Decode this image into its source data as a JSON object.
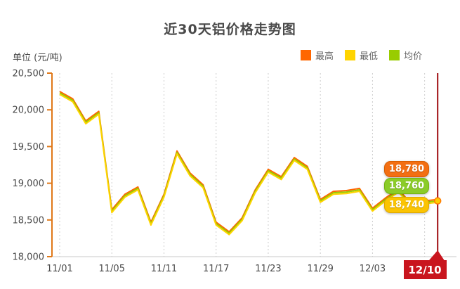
{
  "page": {
    "title": "近30天铝价格走势图",
    "unit_label": "单位 (元/吨)"
  },
  "legend": {
    "items": [
      {
        "label": "最高",
        "color": "#ff6600"
      },
      {
        "label": "最低",
        "color": "#ffd400"
      },
      {
        "label": "均价",
        "color": "#99cc00"
      }
    ]
  },
  "end_labels": {
    "high": {
      "value": "18,780",
      "color": "#f36f13",
      "border": "#d85d00"
    },
    "avg": {
      "value": "18,760",
      "color": "#8bcc29",
      "border": "#74b412"
    },
    "low": {
      "value": "18,740",
      "color": "#fbc402",
      "border": "#dfa800"
    }
  },
  "chart_data": {
    "type": "line",
    "title": "近30天铝价格走势图",
    "ylabel": "单位 (元/吨)",
    "ylim": [
      18000,
      20500
    ],
    "ytick_interval": 500,
    "yticks": [
      "20,500",
      "20,000",
      "19,500",
      "19,000",
      "18,500",
      "18,000"
    ],
    "x": [
      "11/01",
      "11/02",
      "11/03",
      "11/04",
      "11/05",
      "11/08",
      "11/09",
      "11/10",
      "11/11",
      "11/12",
      "11/15",
      "11/16",
      "11/17",
      "11/18",
      "11/19",
      "11/22",
      "11/23",
      "11/24",
      "11/25",
      "11/26",
      "11/29",
      "11/30",
      "12/01",
      "12/02",
      "12/03",
      "12/06",
      "12/07",
      "12/08",
      "12/09",
      "12/10"
    ],
    "xtick_labels": [
      "11/01",
      "11/05",
      "11/11",
      "11/17",
      "11/23",
      "11/29",
      "12/03"
    ],
    "xtick_indices": [
      0,
      4,
      8,
      12,
      16,
      20,
      24
    ],
    "gridline_indices": [
      0,
      4,
      8,
      12,
      16,
      20,
      24,
      28
    ],
    "grid": "vertical-dashed",
    "legend_position": "top-right",
    "axis_colors": {
      "y_axis": "#e07818",
      "x_axis": "#c8c8c8",
      "gridline": "#cccccc"
    },
    "current": {
      "label": "12/10",
      "index": 29,
      "line_color": "#9e0b0f",
      "box_color": "#c9151e"
    },
    "series": [
      {
        "name": "最高",
        "key": "high",
        "color": "#ff6600",
        "values": [
          20250,
          20150,
          19850,
          19980,
          18640,
          18850,
          18950,
          18470,
          18850,
          19440,
          19140,
          18980,
          18470,
          18340,
          18530,
          18910,
          19190,
          19090,
          19350,
          19230,
          18780,
          18890,
          18900,
          18930,
          18660,
          18800,
          18920,
          18710,
          18760,
          18780
        ]
      },
      {
        "name": "均价",
        "key": "avg",
        "color": "#99cc00",
        "values": [
          20230,
          20130,
          19830,
          19960,
          18620,
          18830,
          18930,
          18450,
          18830,
          19420,
          19120,
          18960,
          18450,
          18320,
          18510,
          18890,
          19170,
          19070,
          19330,
          19210,
          18760,
          18870,
          18880,
          18910,
          18640,
          18780,
          18900,
          18690,
          18740,
          18760
        ]
      },
      {
        "name": "最低",
        "key": "low",
        "color": "#ffd400",
        "values": [
          20210,
          20110,
          19810,
          19940,
          18600,
          18810,
          18910,
          18430,
          18810,
          19400,
          19100,
          18940,
          18430,
          18300,
          18490,
          18870,
          19150,
          19050,
          19310,
          19190,
          18740,
          18850,
          18860,
          18890,
          18620,
          18760,
          18880,
          18670,
          18720,
          18740
        ]
      }
    ]
  }
}
